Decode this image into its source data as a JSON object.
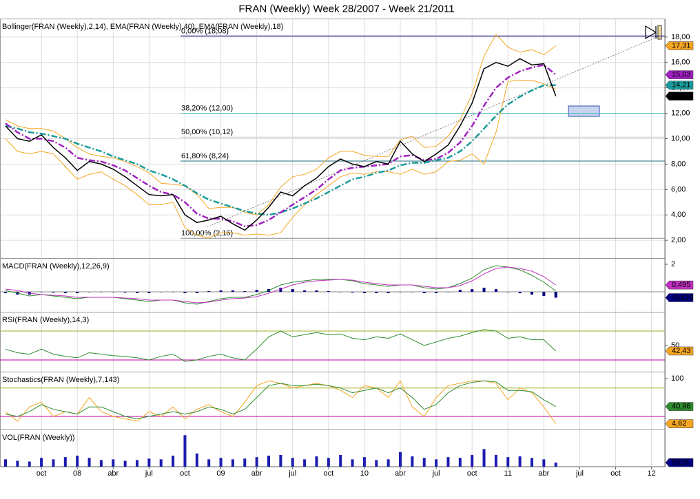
{
  "chart_data": [
    {
      "type": "line",
      "title": "Bollinger(FRAN (Weekly),2,14), EMA(FRAN (Weekly),40), EMA(FRAN (Weekly),18)",
      "ylim": [
        0.6,
        19.45
      ],
      "grid": true,
      "yticks": [
        {
          "value": 2,
          "label": "2,00"
        },
        {
          "value": 4,
          "label": "4,00"
        },
        {
          "value": 6,
          "label": "6,00"
        },
        {
          "value": 8,
          "label": "8,00"
        },
        {
          "value": 10,
          "label": "10,00"
        },
        {
          "value": 12,
          "label": "12,00"
        },
        {
          "value": 14,
          "label": "14,00"
        },
        {
          "value": 16,
          "label": "16,00"
        },
        {
          "value": 18,
          "label": "18,00"
        }
      ],
      "levels": [
        {
          "value": 18.08,
          "label": "0,00% (18,08)",
          "color": "#000080"
        },
        {
          "value": 12.0,
          "label": "38,20% (12,00)",
          "color": "#3cb8b8"
        },
        {
          "value": 10.12,
          "label": "50,00% (10,12)",
          "color": "#c8c8c8"
        },
        {
          "value": 8.24,
          "label": "61,80% (8,24)",
          "color": "#1a6a7a"
        },
        {
          "value": 2.16,
          "label": "100,00% (2,16)",
          "color": "#888888"
        }
      ],
      "series": [
        {
          "color": "#f5a623",
          "style": "solid",
          "width": 1,
          "values": [
            11.5,
            11.0,
            10.8,
            10.8,
            10.6,
            10.0,
            9.3,
            8.8,
            8.6,
            8.5,
            8.2,
            7.8,
            7.3,
            6.5,
            6.4,
            6.3,
            5.6,
            4.5,
            4.6,
            4.6,
            4.2,
            4.0,
            4.8,
            6.2,
            7.0,
            7.2,
            7.6,
            8.5,
            9.0,
            9.0,
            8.7,
            8.6,
            8.6,
            9.9,
            10.2,
            9.3,
            9.4,
            10.2,
            11.5,
            13.5,
            16.5,
            18.2,
            17.2,
            16.8,
            17.0,
            16.6,
            17.31
          ],
          "tag": {
            "value": 17.31,
            "label": "17,31"
          },
          "tag_text_color": "#000000"
        },
        {
          "color": "#f5a623",
          "style": "solid",
          "width": 1,
          "values": [
            10.0,
            9.0,
            8.8,
            9.0,
            8.8,
            7.8,
            6.8,
            7.2,
            7.4,
            6.8,
            6.3,
            5.6,
            4.8,
            4.8,
            5.0,
            3.0,
            2.4,
            2.2,
            2.6,
            2.6,
            2.4,
            2.5,
            2.4,
            2.6,
            3.8,
            4.8,
            5.6,
            6.3,
            7.0,
            7.3,
            7.2,
            7.4,
            7.4,
            7.2,
            7.6,
            7.2,
            7.4,
            8.2,
            8.3,
            8.8,
            8.0,
            10.5,
            14.5,
            14.6,
            14.6,
            14.3,
            13.9
          ]
        },
        {
          "color": "#1a9a9a",
          "style": "dashdot",
          "width": 2.5,
          "values": [
            11.0,
            10.8,
            10.5,
            10.4,
            10.2,
            10.0,
            9.6,
            9.3,
            9.0,
            8.6,
            8.3,
            8.0,
            7.5,
            7.2,
            6.8,
            6.3,
            5.7,
            5.2,
            4.9,
            4.6,
            4.3,
            4.1,
            4.0,
            4.2,
            4.5,
            4.9,
            5.3,
            5.8,
            6.3,
            6.8,
            7.0,
            7.3,
            7.5,
            7.9,
            8.1,
            8.1,
            8.3,
            8.5,
            9.0,
            9.8,
            10.8,
            11.8,
            12.7,
            13.3,
            13.8,
            14.2,
            14.21
          ],
          "tag": {
            "value": 14.21,
            "label": "14,21"
          },
          "tag_text_color": "#ffffff"
        },
        {
          "color": "#a020c0",
          "style": "dashdot",
          "width": 2.5,
          "values": [
            11.2,
            10.5,
            10.0,
            10.0,
            9.8,
            9.3,
            8.5,
            8.3,
            8.2,
            7.9,
            7.5,
            6.9,
            6.3,
            5.8,
            5.6,
            5.0,
            4.1,
            3.7,
            3.7,
            3.5,
            3.1,
            3.2,
            3.6,
            4.2,
            4.8,
            5.4,
            6.0,
            6.8,
            7.5,
            7.7,
            7.8,
            7.9,
            8.0,
            8.6,
            8.7,
            8.3,
            8.4,
            8.9,
            9.7,
            11.0,
            12.6,
            14.0,
            14.8,
            15.3,
            15.6,
            15.8,
            15.03
          ],
          "tag": {
            "value": 15.03,
            "label": "15,03"
          },
          "tag_text_color": "#ffffff"
        },
        {
          "color": "#000000",
          "style": "solid",
          "width": 1.5,
          "values": [
            11.0,
            10.0,
            9.8,
            10.3,
            9.3,
            8.5,
            7.5,
            8.2,
            8.0,
            7.6,
            7.0,
            6.3,
            5.6,
            5.5,
            5.6,
            4.0,
            3.4,
            3.6,
            3.9,
            3.3,
            2.8,
            3.6,
            4.6,
            5.8,
            5.5,
            6.3,
            6.9,
            7.8,
            8.4,
            8.0,
            7.8,
            8.2,
            8.0,
            9.8,
            8.8,
            8.2,
            8.8,
            9.5,
            11.0,
            12.8,
            15.5,
            16.0,
            15.7,
            16.3,
            15.8,
            15.9,
            13.35
          ],
          "tag": {
            "value": 13.35,
            "label": "13,35"
          },
          "tag_text_color": "#ffffff"
        }
      ]
    },
    {
      "type": "line",
      "title": "MACD(FRAN (Weekly),12,26,9)",
      "ylim": [
        -1.45,
        2.45
      ],
      "yticks": [
        2
      ],
      "levels": [
        {
          "value": 0,
          "color": "#888888"
        }
      ],
      "series": [
        {
          "type": "bar",
          "color": "#000080",
          "values": [
            -0.1,
            -0.2,
            -0.2,
            0,
            -0.05,
            -0.1,
            -0.1,
            0,
            0,
            0,
            -0.05,
            -0.1,
            -0.1,
            0,
            0,
            -0.1,
            -0.1,
            0.05,
            0.1,
            0.1,
            0.05,
            0.15,
            0.2,
            0.3,
            0.2,
            0.1,
            0.1,
            0.05,
            0,
            -0.05,
            -0.1,
            -0.1,
            -0.1,
            0,
            0,
            -0.1,
            -0.1,
            0,
            0.15,
            0.2,
            0.3,
            0.2,
            0,
            -0.1,
            -0.2,
            -0.3,
            -0.424
          ],
          "tag": {
            "value": -0.424,
            "label": "-0,424"
          },
          "tag_text_color": "#ffffff"
        },
        {
          "color": "#2e8b2e",
          "style": "solid",
          "width": 1,
          "values": [
            0.1,
            -0.1,
            -0.3,
            -0.2,
            -0.3,
            -0.4,
            -0.5,
            -0.4,
            -0.4,
            -0.4,
            -0.5,
            -0.6,
            -0.7,
            -0.6,
            -0.6,
            -0.8,
            -0.9,
            -0.7,
            -0.5,
            -0.4,
            -0.4,
            -0.2,
            0.1,
            0.5,
            0.7,
            0.8,
            0.9,
            0.9,
            0.9,
            0.8,
            0.6,
            0.5,
            0.4,
            0.5,
            0.5,
            0.3,
            0.2,
            0.3,
            0.6,
            1.0,
            1.6,
            1.9,
            1.8,
            1.6,
            1.2,
            0.7,
            0.071
          ]
        },
        {
          "color": "#c030c0",
          "style": "solid",
          "width": 1,
          "values": [
            0.2,
            0.1,
            -0.1,
            -0.2,
            -0.25,
            -0.3,
            -0.4,
            -0.4,
            -0.4,
            -0.4,
            -0.45,
            -0.5,
            -0.6,
            -0.6,
            -0.6,
            -0.7,
            -0.8,
            -0.75,
            -0.6,
            -0.5,
            -0.45,
            -0.35,
            -0.1,
            0.2,
            0.5,
            0.7,
            0.8,
            0.85,
            0.9,
            0.85,
            0.7,
            0.6,
            0.5,
            0.5,
            0.5,
            0.4,
            0.3,
            0.3,
            0.45,
            0.8,
            1.3,
            1.7,
            1.8,
            1.7,
            1.5,
            1.1,
            0.495
          ],
          "tag": {
            "value": 0.495,
            "label": "0,495"
          },
          "tag_text_color": "#ffffff"
        }
      ]
    },
    {
      "type": "line",
      "title": "RSI(FRAN (Weekly),14,3)",
      "ylim": [
        13.8,
        96.7
      ],
      "yticks": [
        50
      ],
      "levels": [
        {
          "value": 70,
          "color": "#9ab020"
        },
        {
          "value": 30,
          "color": "#c000a0"
        }
      ],
      "series": [
        {
          "color": "#2e8b2e",
          "style": "solid",
          "width": 1,
          "values": [
            45,
            40,
            38,
            45,
            38,
            35,
            33,
            40,
            38,
            36,
            35,
            33,
            30,
            35,
            38,
            28,
            30,
            35,
            38,
            33,
            30,
            45,
            62,
            70,
            62,
            65,
            68,
            65,
            66,
            60,
            58,
            62,
            60,
            66,
            58,
            50,
            55,
            60,
            63,
            68,
            72,
            70,
            60,
            62,
            58,
            58,
            42.43
          ],
          "tag": {
            "value": 42.43,
            "label": "42,43"
          },
          "tag_text_color": "#000000",
          "tag_color": "#f5a623"
        }
      ]
    },
    {
      "type": "line",
      "title": "Stochastics(FRAN (Weekly),7,143)",
      "ylim": [
        -7.6,
        114.5
      ],
      "yticks": [
        100
      ],
      "levels": [
        {
          "value": 80,
          "color": "#9ab020"
        },
        {
          "value": 20,
          "color": "#c000a0"
        }
      ],
      "series": [
        {
          "color": "#f5a623",
          "style": "solid",
          "width": 1,
          "values": [
            30,
            10,
            40,
            50,
            20,
            30,
            25,
            60,
            30,
            20,
            15,
            10,
            30,
            20,
            40,
            15,
            35,
            45,
            30,
            20,
            50,
            85,
            95,
            90,
            80,
            85,
            90,
            85,
            75,
            60,
            85,
            80,
            60,
            95,
            40,
            20,
            60,
            85,
            90,
            95,
            95,
            90,
            55,
            80,
            70,
            40,
            4.62
          ],
          "tag": {
            "value": 4.62,
            "label": "4,62"
          },
          "tag_text_color": "#000000"
        },
        {
          "color": "#2e8b2e",
          "style": "solid",
          "width": 1,
          "values": [
            25,
            20,
            30,
            45,
            35,
            30,
            25,
            40,
            40,
            30,
            20,
            15,
            20,
            25,
            30,
            25,
            30,
            40,
            35,
            25,
            35,
            60,
            85,
            90,
            85,
            85,
            88,
            85,
            80,
            70,
            75,
            80,
            70,
            80,
            60,
            35,
            45,
            70,
            85,
            92,
            95,
            93,
            75,
            75,
            72,
            55,
            40.98
          ],
          "tag": {
            "value": 40.98,
            "label": "40,98"
          },
          "tag_text_color": "#ffffff"
        }
      ]
    },
    {
      "type": "bar",
      "title": "VOL(FRAN (Weekly))",
      "ylim": [
        0,
        5080000
      ],
      "x": [
        "2007-07",
        "2007-08",
        "2007-09",
        "2007-10",
        "2007-11",
        "2007-12",
        "2008-01",
        "2008-02",
        "2008-03",
        "2008-04",
        "2008-05",
        "2008-06",
        "2008-07",
        "2008-08",
        "2008-09",
        "2008-10",
        "2008-11",
        "2008-12",
        "2009-01",
        "2009-02",
        "2009-03",
        "2009-04",
        "2009-05",
        "2009-06",
        "2009-07",
        "2009-08",
        "2009-09",
        "2009-10",
        "2009-11",
        "2009-12",
        "2010-01",
        "2010-02",
        "2010-03",
        "2010-04",
        "2010-05",
        "2010-06",
        "2010-07",
        "2010-08",
        "2010-09",
        "2010-10",
        "2010-11",
        "2010-12",
        "2011-01",
        "2011-02",
        "2011-03",
        "2011-04",
        "2011-05"
      ],
      "xlim": [
        "2007-07",
        "2012-02"
      ],
      "xticks": [
        {
          "value": "2007-10",
          "label": "oct"
        },
        {
          "value": "2008-01",
          "label": "08"
        },
        {
          "value": "2008-04",
          "label": "abr"
        },
        {
          "value": "2008-07",
          "label": "jul"
        },
        {
          "value": "2008-10",
          "label": "oct"
        },
        {
          "value": "2009-01",
          "label": "09"
        },
        {
          "value": "2009-04",
          "label": "abr"
        },
        {
          "value": "2009-07",
          "label": "jul"
        },
        {
          "value": "2009-10",
          "label": "oct"
        },
        {
          "value": "2010-01",
          "label": "10"
        },
        {
          "value": "2010-04",
          "label": "abr"
        },
        {
          "value": "2010-07",
          "label": "jul"
        },
        {
          "value": "2010-10",
          "label": "oct"
        },
        {
          "value": "2011-01",
          "label": "11"
        },
        {
          "value": "2011-04",
          "label": "abr"
        },
        {
          "value": "2011-07",
          "label": "jul"
        },
        {
          "value": "2011-10",
          "label": "oct"
        },
        {
          "value": "2012-01",
          "label": "12"
        }
      ],
      "series": [
        {
          "type": "bar",
          "color": "#1c1cb0",
          "values": [
            1000000,
            800000,
            700000,
            1200000,
            1000000,
            1300000,
            1500000,
            1200000,
            900000,
            1000000,
            800000,
            900000,
            1100000,
            1000000,
            1500000,
            4300000,
            1800000,
            1000000,
            1200000,
            1000000,
            1100000,
            1300000,
            1500000,
            1600000,
            1200000,
            1000000,
            1400000,
            1200000,
            1600000,
            1000000,
            1300000,
            900000,
            1000000,
            2000000,
            1400000,
            1200000,
            1000000,
            1300000,
            1200000,
            1600000,
            2400000,
            1600000,
            1300000,
            1400000,
            1200000,
            1000000,
            552000
          ],
          "tag": {
            "value": 552000,
            "label": "552K"
          },
          "tag_text_color": "#ffffff",
          "tag_color": "#000080"
        }
      ]
    }
  ]
}
